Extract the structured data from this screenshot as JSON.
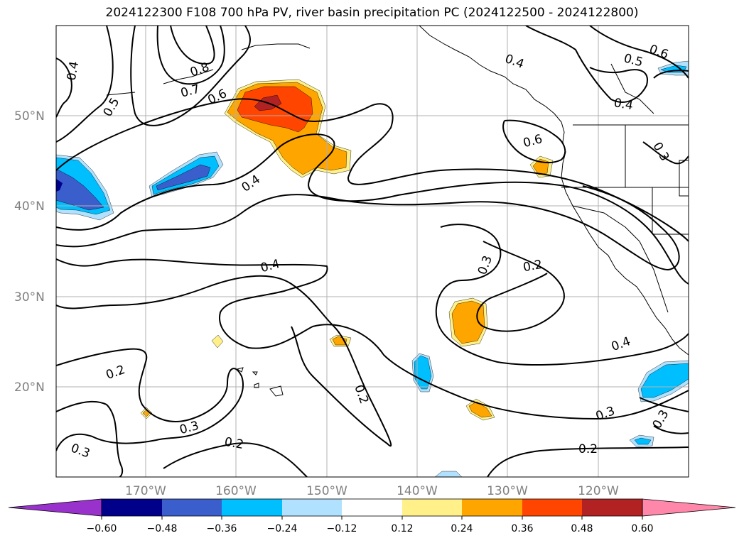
{
  "title": "2024122300 F108 700 hPa PV, river basin precipitation PC (2024122500 - 2024122800)",
  "lat_labels": [
    "50°N",
    "40°N",
    "30°N",
    "20°N"
  ],
  "lon_labels": [
    "170°W",
    "160°W",
    "150°W",
    "140°W",
    "130°W",
    "120°W"
  ],
  "contour_labels": {
    "c1": "0.4",
    "c2": "0.5",
    "c3": "0.8",
    "c4": "0.7",
    "c5": "0.6",
    "c6": "0.4",
    "c7": "0.4",
    "c8": "0.6",
    "c9": "0.5",
    "c10": "0.6",
    "c11": "0.4",
    "c12": "0.4",
    "c13": "0.3",
    "c14": "0.2",
    "c15": "0.4",
    "c16": "0.2",
    "c17": "0.3",
    "c18": "0.3",
    "c19": "0.2",
    "c20": "0.2",
    "c21": "0.3",
    "c22": "0.2",
    "c23": "0.3"
  },
  "colorbar": {
    "ticks": [
      "−0.60",
      "−0.48",
      "−0.36",
      "−0.24",
      "−0.12",
      "0.12",
      "0.24",
      "0.36",
      "0.48",
      "0.60"
    ],
    "colors": [
      "#9932cc",
      "#00008b",
      "#3a5fcd",
      "#00bfff",
      "#b0e2ff",
      "#ffffff",
      "#fff08a",
      "#ffa500",
      "#ff4500",
      "#b22222",
      "#ff88aa"
    ]
  },
  "shading_colors": {
    "strong_neg": "#3a5fcd",
    "neg": "#00bfff",
    "weak_neg": "#b0e2ff",
    "weak_pos": "#fff08a",
    "pos": "#ffa500",
    "strong_pos": "#ff4500",
    "very_strong_pos": "#b22222"
  }
}
